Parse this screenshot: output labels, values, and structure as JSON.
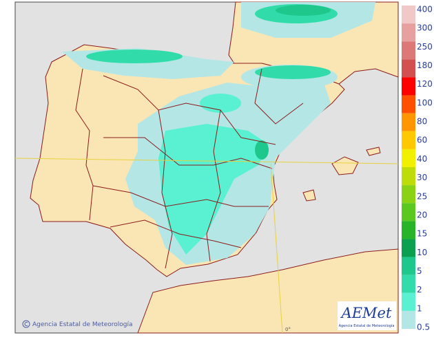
{
  "map": {
    "credit": "Agencia Estatal de Meteorología",
    "meridian_label": "0°"
  },
  "logo": {
    "name": "AEMet",
    "subtitle": "Agencia Estatal de Meteorología"
  },
  "legend": {
    "items": [
      {
        "label": "400",
        "color": "#f0c8c8"
      },
      {
        "label": "300",
        "color": "#e6a0a0"
      },
      {
        "label": "250",
        "color": "#dc7878"
      },
      {
        "label": "180",
        "color": "#d25050"
      },
      {
        "label": "120",
        "color": "#ff0000"
      },
      {
        "label": "100",
        "color": "#ff5000"
      },
      {
        "label": "80",
        "color": "#ff9600"
      },
      {
        "label": "60",
        "color": "#ffc800"
      },
      {
        "label": "40",
        "color": "#f0f000"
      },
      {
        "label": "30",
        "color": "#bedc0a"
      },
      {
        "label": "25",
        "color": "#8cd214"
      },
      {
        "label": "20",
        "color": "#5ac81e"
      },
      {
        "label": "15",
        "color": "#28b428"
      },
      {
        "label": "10",
        "color": "#0aa050"
      },
      {
        "label": "5",
        "color": "#1ec88c"
      },
      {
        "label": "2",
        "color": "#32dcaa"
      },
      {
        "label": "1",
        "color": "#5af0d2"
      },
      {
        "label": "0.5",
        "color": "#b4e6e6"
      }
    ]
  }
}
